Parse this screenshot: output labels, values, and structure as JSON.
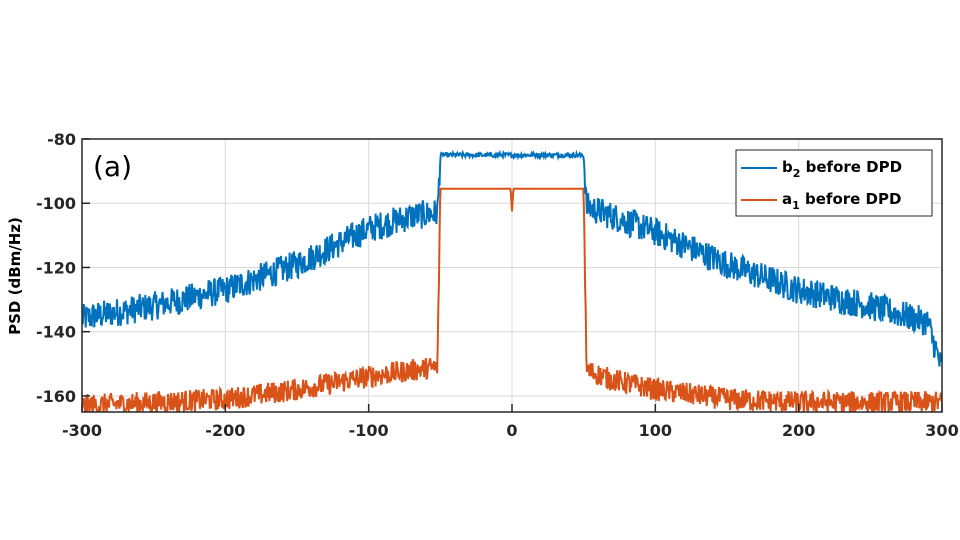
{
  "chart_data": {
    "type": "line",
    "panel_label": "(a)",
    "title": "",
    "xlabel": "",
    "ylabel": "PSD (dBm/Hz)",
    "xlim": [
      -300,
      300
    ],
    "ylim": [
      -165,
      -80
    ],
    "xticks": [
      -300,
      -200,
      -100,
      0,
      100,
      200,
      300
    ],
    "yticks": [
      -80,
      -100,
      -120,
      -140,
      -160
    ],
    "grid": true,
    "legend_position": "top-right",
    "colors": {
      "b2": "#0072BD",
      "a1": "#D95319"
    },
    "series": [
      {
        "name": "b2 before DPD",
        "legend_main": "b",
        "legend_sub": "2",
        "legend_rest": " before DPD",
        "x": [
          -300,
          -290,
          -250,
          -200,
          -150,
          -100,
          -70,
          -52,
          -50,
          0,
          50,
          52,
          70,
          100,
          150,
          200,
          250,
          290,
          300
        ],
        "y": [
          -136,
          -135,
          -132,
          -127,
          -119,
          -108,
          -104,
          -103,
          -85,
          -85,
          -85,
          -101,
          -104,
          -109,
          -119,
          -127,
          -132,
          -137,
          -152
        ]
      },
      {
        "name": "a1 before DPD",
        "legend_main": "a",
        "legend_sub": "1",
        "legend_rest": " before DPD",
        "x": [
          -300,
          -250,
          -200,
          -150,
          -100,
          -70,
          -52,
          -50,
          -1,
          0,
          1,
          50,
          52,
          70,
          100,
          150,
          200,
          250,
          300
        ],
        "y": [
          -163,
          -162,
          -161,
          -158,
          -154,
          -152,
          -151,
          -95.5,
          -95.5,
          -102.5,
          -95.5,
          -95.5,
          -152,
          -155,
          -158,
          -161,
          -162,
          -162,
          -162
        ]
      }
    ]
  }
}
